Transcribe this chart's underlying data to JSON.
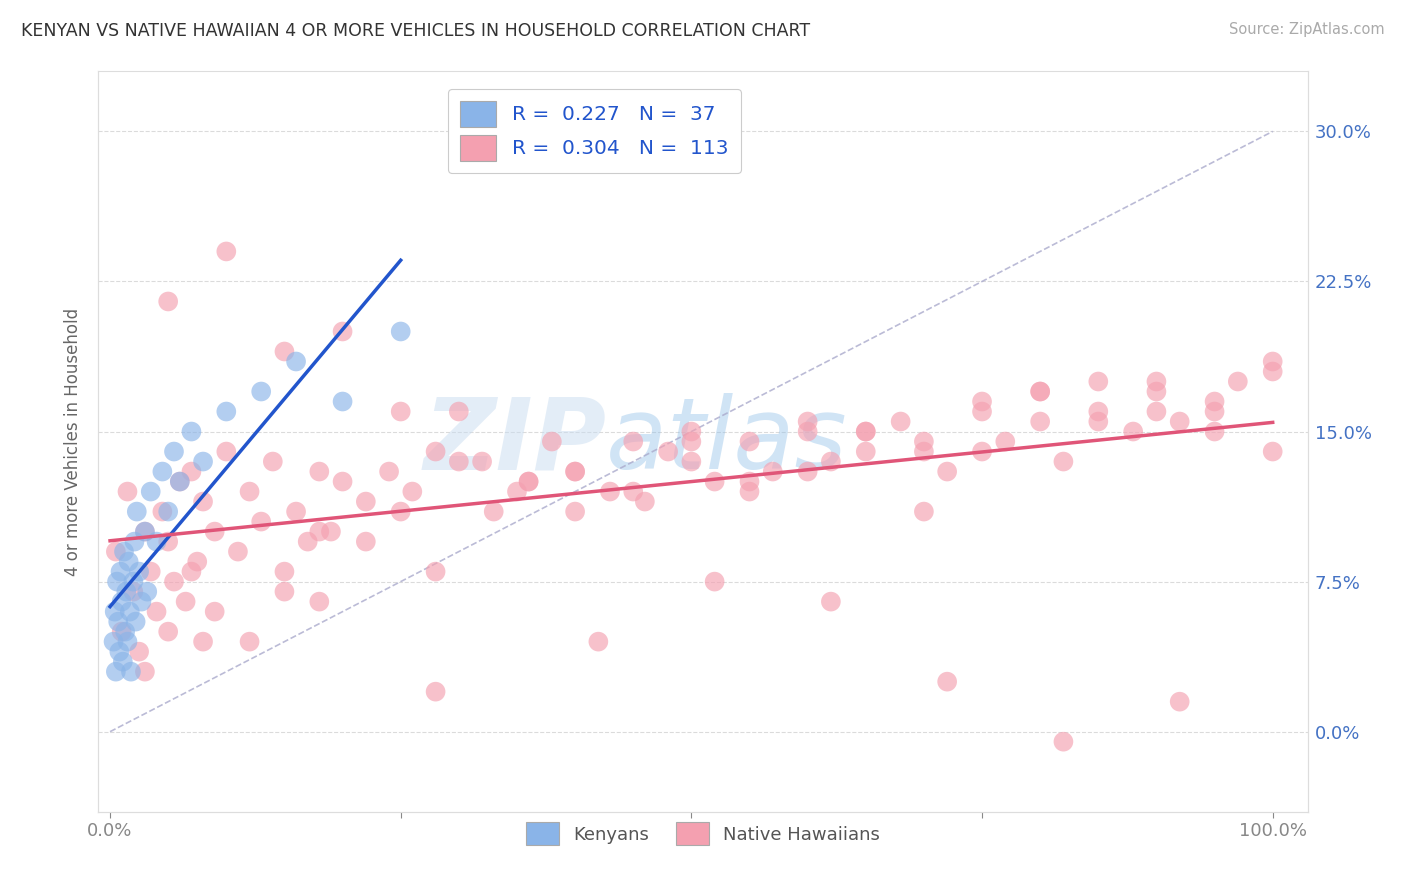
{
  "title": "KENYAN VS NATIVE HAWAIIAN 4 OR MORE VEHICLES IN HOUSEHOLD CORRELATION CHART",
  "source": "Source: ZipAtlas.com",
  "ylabel": "4 or more Vehicles in Household",
  "kenyan_R": 0.227,
  "kenyan_N": 37,
  "hawaiian_R": 0.304,
  "hawaiian_N": 113,
  "kenyan_color": "#8AB4E8",
  "hawaiian_color": "#F4A0B0",
  "kenyan_line_color": "#2255CC",
  "hawaiian_line_color": "#E05578",
  "legend_text_color": "#2255CC",
  "right_axis_color": "#4472C4",
  "watermark_color": "#D0E4F4",
  "watermark_text_color": "#8BBFE8",
  "background_color": "#FFFFFF",
  "ytick_vals": [
    0.0,
    7.5,
    15.0,
    22.5,
    30.0
  ],
  "ytick_labels": [
    "0.0%",
    "7.5%",
    "15.0%",
    "22.5%",
    "30.0%"
  ],
  "xlim": [
    -1.0,
    103.0
  ],
  "ylim": [
    -4.0,
    33.0
  ],
  "diag_color": "#AAAACC",
  "grid_color": "#CCCCCC",
  "kenyan_x": [
    0.3,
    0.4,
    0.5,
    0.6,
    0.7,
    0.8,
    0.9,
    1.0,
    1.1,
    1.2,
    1.3,
    1.4,
    1.5,
    1.6,
    1.7,
    1.8,
    2.0,
    2.1,
    2.2,
    2.3,
    2.5,
    2.7,
    3.0,
    3.2,
    3.5,
    4.0,
    4.5,
    5.0,
    5.5,
    6.0,
    7.0,
    8.0,
    10.0,
    13.0,
    16.0,
    20.0,
    25.0
  ],
  "kenyan_y": [
    4.5,
    6.0,
    3.0,
    7.5,
    5.5,
    4.0,
    8.0,
    6.5,
    3.5,
    9.0,
    5.0,
    7.0,
    4.5,
    8.5,
    6.0,
    3.0,
    7.5,
    9.5,
    5.5,
    11.0,
    8.0,
    6.5,
    10.0,
    7.0,
    12.0,
    9.5,
    13.0,
    11.0,
    14.0,
    12.5,
    15.0,
    13.5,
    16.0,
    17.0,
    18.5,
    16.5,
    20.0
  ],
  "hawaiian_x": [
    0.5,
    1.0,
    1.5,
    2.0,
    2.5,
    3.0,
    3.5,
    4.0,
    4.5,
    5.0,
    5.5,
    6.0,
    6.5,
    7.0,
    7.5,
    8.0,
    9.0,
    10.0,
    11.0,
    12.0,
    13.0,
    14.0,
    15.0,
    16.0,
    17.0,
    18.0,
    19.0,
    20.0,
    22.0,
    24.0,
    26.0,
    28.0,
    30.0,
    33.0,
    36.0,
    38.0,
    40.0,
    43.0,
    46.0,
    48.0,
    50.0,
    52.0,
    55.0,
    57.0,
    60.0,
    62.0,
    65.0,
    68.0,
    70.0,
    72.0,
    75.0,
    77.0,
    80.0,
    82.0,
    85.0,
    88.0,
    90.0,
    92.0,
    95.0,
    97.0,
    100.0,
    3.0,
    5.0,
    7.0,
    9.0,
    12.0,
    15.0,
    18.0,
    22.0,
    25.0,
    28.0,
    32.0,
    36.0,
    40.0,
    45.0,
    50.0,
    55.0,
    60.0,
    65.0,
    70.0,
    75.0,
    80.0,
    85.0,
    90.0,
    95.0,
    100.0,
    10.0,
    20.0,
    30.0,
    40.0,
    50.0,
    60.0,
    70.0,
    80.0,
    90.0,
    100.0,
    5.0,
    15.0,
    25.0,
    35.0,
    45.0,
    55.0,
    65.0,
    75.0,
    85.0,
    95.0,
    8.0,
    18.0,
    28.0,
    42.0,
    52.0,
    62.0,
    72.0,
    82.0,
    92.0
  ],
  "hawaiian_y": [
    9.0,
    5.0,
    12.0,
    7.0,
    4.0,
    10.0,
    8.0,
    6.0,
    11.0,
    9.5,
    7.5,
    12.5,
    6.5,
    13.0,
    8.5,
    11.5,
    10.0,
    14.0,
    9.0,
    12.0,
    10.5,
    13.5,
    8.0,
    11.0,
    9.5,
    13.0,
    10.0,
    12.5,
    11.5,
    13.0,
    12.0,
    14.0,
    13.5,
    11.0,
    12.5,
    14.5,
    13.0,
    12.0,
    11.5,
    14.0,
    13.5,
    12.5,
    14.5,
    13.0,
    15.0,
    13.5,
    14.0,
    15.5,
    14.5,
    13.0,
    16.0,
    14.5,
    15.5,
    13.5,
    16.0,
    15.0,
    17.0,
    15.5,
    16.5,
    17.5,
    18.0,
    3.0,
    5.0,
    8.0,
    6.0,
    4.5,
    7.0,
    10.0,
    9.5,
    11.0,
    8.0,
    13.5,
    12.5,
    11.0,
    12.0,
    14.5,
    12.0,
    13.0,
    15.0,
    14.0,
    16.5,
    17.0,
    15.5,
    17.5,
    16.0,
    18.5,
    24.0,
    20.0,
    16.0,
    13.0,
    15.0,
    15.5,
    11.0,
    17.0,
    16.0,
    14.0,
    21.5,
    19.0,
    16.0,
    12.0,
    14.5,
    12.5,
    15.0,
    14.0,
    17.5,
    15.0,
    4.5,
    6.5,
    2.0,
    4.5,
    7.5,
    6.5,
    2.5,
    -0.5,
    1.5
  ]
}
